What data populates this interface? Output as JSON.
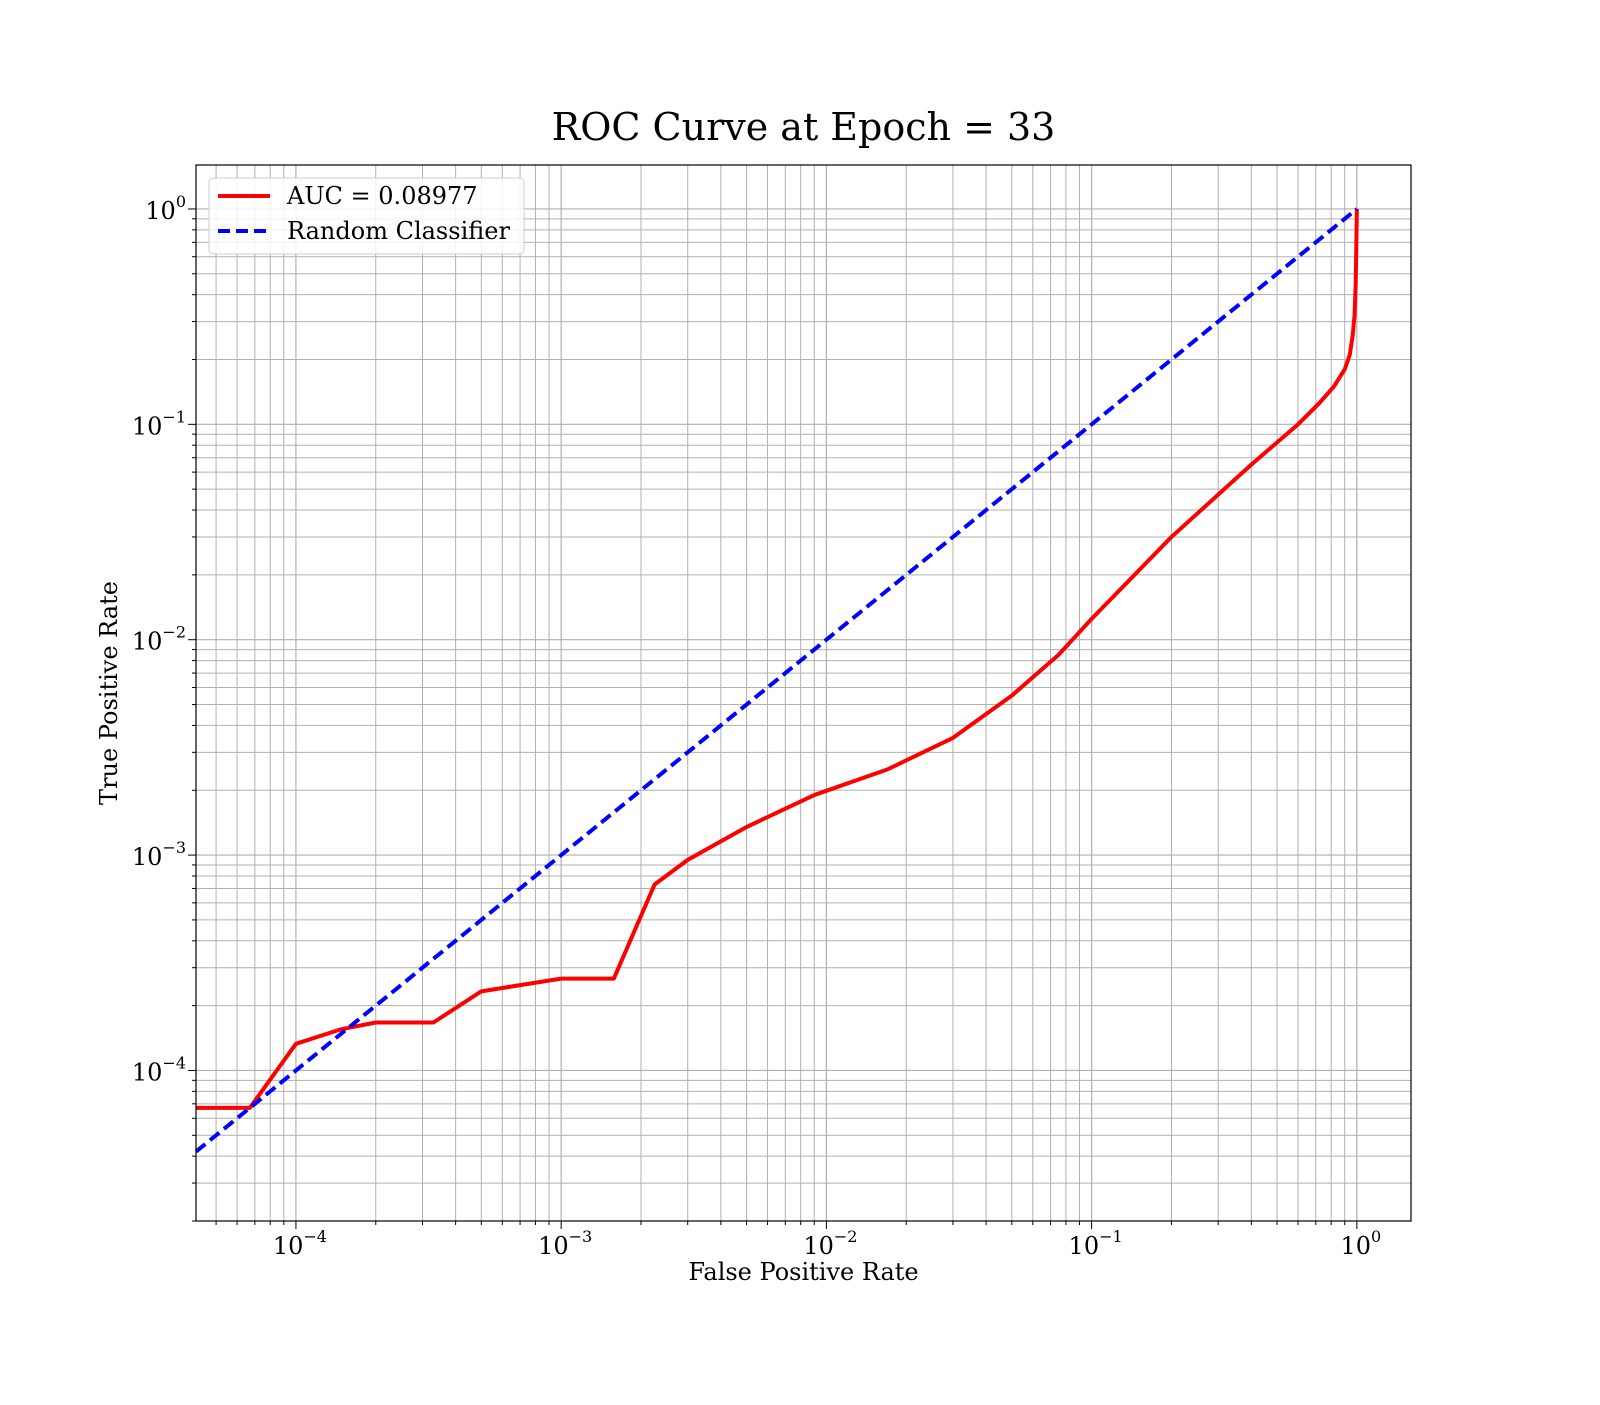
{
  "chart_data": {
    "type": "line",
    "title": "ROC Curve at Epoch = 33",
    "xlabel": "False Positive Rate",
    "ylabel": "True Positive Rate",
    "xscale": "log",
    "yscale": "log",
    "xlim": [
      4.2e-05,
      1.6
    ],
    "ylim": [
      2e-05,
      1.6
    ],
    "grid": "both",
    "legend_position": "top-left",
    "x_ticks": [
      {
        "value": 0.0001,
        "base": "10",
        "exp": "−4"
      },
      {
        "value": 0.001,
        "base": "10",
        "exp": "−3"
      },
      {
        "value": 0.01,
        "base": "10",
        "exp": "−2"
      },
      {
        "value": 0.1,
        "base": "10",
        "exp": "−1"
      },
      {
        "value": 1,
        "base": "10",
        "exp": "0"
      }
    ],
    "y_ticks": [
      {
        "value": 0.0001,
        "base": "10",
        "exp": "−4"
      },
      {
        "value": 0.001,
        "base": "10",
        "exp": "−3"
      },
      {
        "value": 0.01,
        "base": "10",
        "exp": "−2"
      },
      {
        "value": 0.1,
        "base": "10",
        "exp": "−1"
      },
      {
        "value": 1,
        "base": "10",
        "exp": "0"
      }
    ],
    "series": [
      {
        "name": "AUC = 0.08977",
        "color": "#ff0000",
        "style": "solid",
        "x": [
          4.2e-05,
          6.7e-05,
          0.0001,
          0.000147,
          0.0002,
          0.00033,
          0.0005,
          0.001,
          0.00158,
          0.00225,
          0.003,
          0.005,
          0.009,
          0.017,
          0.03,
          0.05,
          0.075,
          0.1,
          0.2,
          0.4,
          0.6,
          0.72,
          0.82,
          0.9,
          0.94,
          0.965,
          0.98,
          0.99,
          0.995,
          1.0
        ],
        "y": [
          6.7e-05,
          6.7e-05,
          0.000133,
          0.000155,
          0.000167,
          0.000167,
          0.000233,
          0.000267,
          0.000267,
          0.00073,
          0.00095,
          0.00135,
          0.0019,
          0.0025,
          0.0035,
          0.0055,
          0.0085,
          0.0125,
          0.03,
          0.065,
          0.1,
          0.125,
          0.15,
          0.18,
          0.21,
          0.26,
          0.32,
          0.45,
          0.65,
          1.0
        ]
      },
      {
        "name": "Random Classifier",
        "color": "#0000ff",
        "style": "dashed",
        "x": [
          4.2e-05,
          1.0
        ],
        "y": [
          4.2e-05,
          1.0
        ]
      }
    ]
  }
}
